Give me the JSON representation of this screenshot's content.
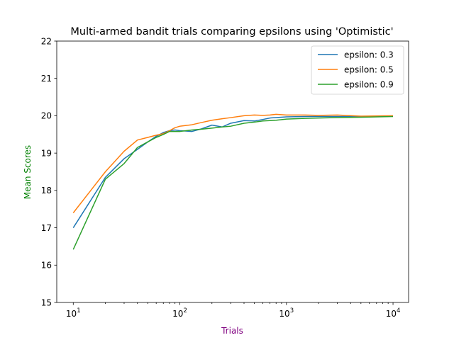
{
  "chart_data": {
    "type": "line",
    "title": "Multi-armed bandit trials comparing epsilons using 'Optimistic'",
    "xlabel": "Trials",
    "ylabel": "Mean Scores",
    "xlabel_color": "#800080",
    "ylabel_color": "#008000",
    "xscale": "log",
    "xlim": [
      7,
      14000
    ],
    "ylim": [
      15,
      22
    ],
    "x_ticks": [
      {
        "value": 10,
        "base": "10",
        "exp": "1"
      },
      {
        "value": 100,
        "base": "10",
        "exp": "2"
      },
      {
        "value": 1000,
        "base": "10",
        "exp": "3"
      },
      {
        "value": 10000,
        "base": "10",
        "exp": "4"
      }
    ],
    "y_ticks": [
      "15",
      "16",
      "17",
      "18",
      "19",
      "20",
      "21",
      "22"
    ],
    "grid": false,
    "legend_position": "top-right",
    "series": [
      {
        "name": "epsilon: 0.3",
        "color": "#1f77b4",
        "x": [
          10,
          20,
          30,
          40,
          50,
          60,
          70,
          80,
          90,
          100,
          130,
          160,
          200,
          250,
          300,
          400,
          500,
          600,
          700,
          800,
          1000,
          1500,
          2000,
          3000,
          5000,
          10000
        ],
        "y": [
          17.0,
          18.35,
          18.85,
          19.1,
          19.3,
          19.45,
          19.55,
          19.6,
          19.62,
          19.6,
          19.58,
          19.65,
          19.75,
          19.7,
          19.8,
          19.87,
          19.86,
          19.9,
          19.94,
          19.95,
          19.97,
          19.98,
          19.98,
          19.98,
          19.98,
          19.99
        ]
      },
      {
        "name": "epsilon: 0.5",
        "color": "#ff7f0e",
        "x": [
          10,
          20,
          30,
          40,
          50,
          60,
          70,
          80,
          90,
          100,
          130,
          160,
          200,
          250,
          300,
          400,
          500,
          600,
          700,
          800,
          1000,
          1500,
          2000,
          3000,
          5000,
          10000
        ],
        "y": [
          17.4,
          18.5,
          19.05,
          19.35,
          19.42,
          19.48,
          19.52,
          19.6,
          19.68,
          19.72,
          19.76,
          19.82,
          19.88,
          19.92,
          19.95,
          20.0,
          20.02,
          20.01,
          20.02,
          20.04,
          20.02,
          20.02,
          20.01,
          20.02,
          19.99,
          20.0
        ]
      },
      {
        "name": "epsilon: 0.9",
        "color": "#2ca02c",
        "x": [
          10,
          20,
          30,
          40,
          50,
          60,
          70,
          80,
          90,
          100,
          130,
          160,
          200,
          250,
          300,
          400,
          500,
          600,
          700,
          800,
          1000,
          1500,
          2000,
          3000,
          5000,
          10000
        ],
        "y": [
          16.42,
          18.3,
          18.72,
          19.15,
          19.3,
          19.42,
          19.5,
          19.58,
          19.58,
          19.58,
          19.62,
          19.64,
          19.67,
          19.7,
          19.72,
          19.8,
          19.83,
          19.86,
          19.87,
          19.88,
          19.91,
          19.93,
          19.94,
          19.95,
          19.96,
          19.98
        ]
      }
    ]
  }
}
